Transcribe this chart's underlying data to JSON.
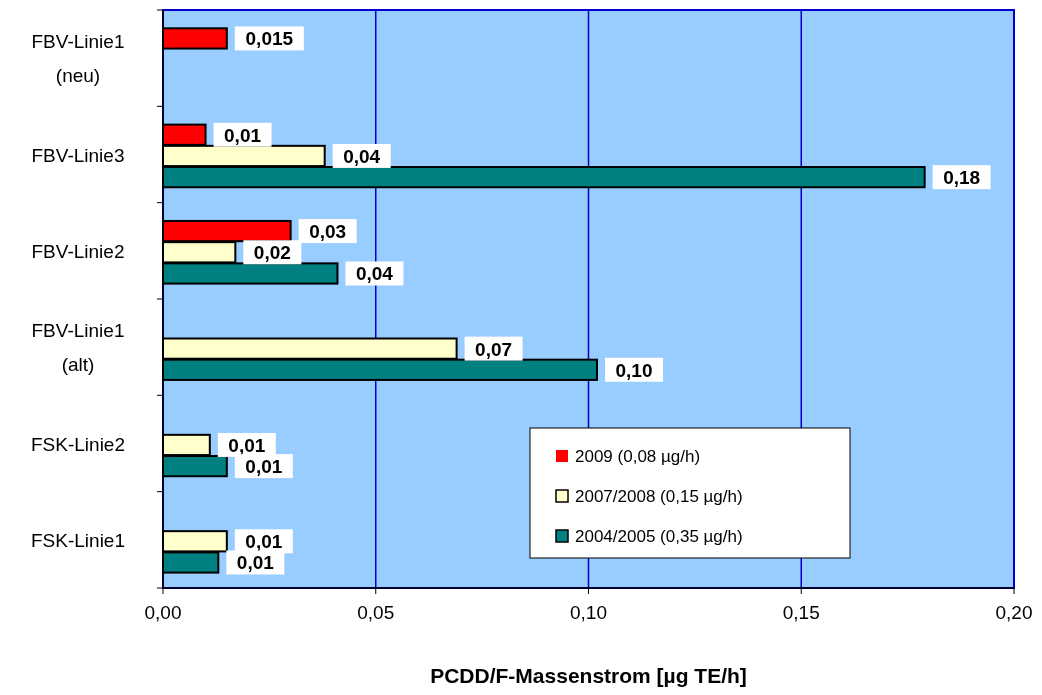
{
  "chart_data": {
    "type": "bar",
    "orientation": "horizontal",
    "xlabel": "PCDD/F-Massenstrom [µg TE/h]",
    "categories": [
      "FBV-Linie1\n(neu)",
      "FBV-Linie3",
      "FBV-Linie2",
      "FBV-Linie1\n(alt)",
      "FSK-Linie2",
      "FSK-Linie1"
    ],
    "series": [
      {
        "name": "2009 (0,08 µg/h)",
        "color": "#ff0000",
        "values": [
          0.015,
          0.01,
          0.03,
          null,
          null,
          null
        ],
        "value_labels": [
          "0,015",
          "0,01",
          "0,03",
          null,
          null,
          null
        ]
      },
      {
        "name": "2007/2008 (0,15 µg/h)",
        "color": "#ffffcc",
        "values": [
          null,
          0.038,
          0.017,
          0.069,
          0.011,
          0.015
        ],
        "value_labels": [
          null,
          "0,04",
          "0,02",
          "0,07",
          "0,01",
          "0,01"
        ]
      },
      {
        "name": "2004/2005 (0,35 µg/h)",
        "color": "#008080",
        "values": [
          null,
          0.179,
          0.041,
          0.102,
          0.015,
          0.013
        ],
        "value_labels": [
          null,
          "0,18",
          "0,04",
          "0,10",
          "0,01",
          "0,01"
        ]
      }
    ],
    "xlim": [
      0,
      0.2
    ],
    "xticks": [
      {
        "value": 0,
        "label": "0,00"
      },
      {
        "value": 0.05,
        "label": "0,05"
      },
      {
        "value": 0.1,
        "label": "0,10"
      },
      {
        "value": 0.15,
        "label": "0,15"
      },
      {
        "value": 0.2,
        "label": "0,20"
      }
    ],
    "grid": "x",
    "legend": "bottom right"
  }
}
